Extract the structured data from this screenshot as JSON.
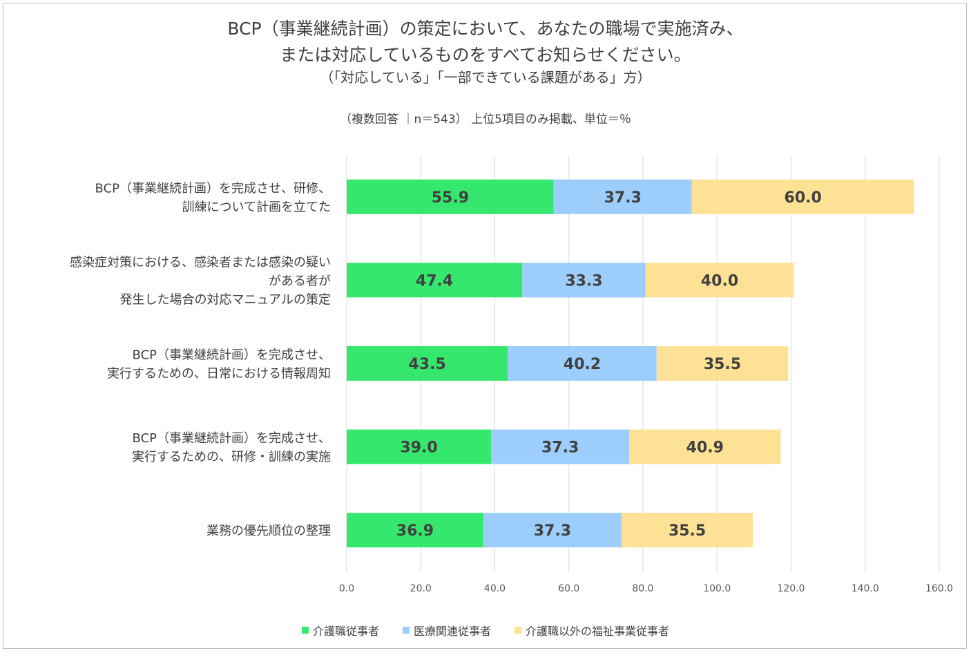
{
  "colors": {
    "s0": "#35e86d",
    "s1": "#9ccdfb",
    "s2": "#fde194",
    "grid": "#d9d9d9"
  },
  "chart_data": {
    "type": "bar",
    "orientation": "horizontal",
    "stacked": true,
    "title_lines": [
      "BCP（事業継続計画）の策定において、あなたの職場で実施済み、",
      "または対応しているものをすべてお知らせください。",
      "（「対応している」「一部できている課題がある」方）"
    ],
    "subtitle": "（複数回答 ｜n＝543） 上位5項目のみ掲載、単位＝％",
    "categories": [
      [
        "BCP（事業継続計画）を完成させ、研修、",
        "訓練について計画を立てた"
      ],
      [
        "感染症対策における、感染者または感染の疑い",
        "がある者が",
        "発生した場合の対応マニュアルの策定"
      ],
      [
        "BCP（事業継続計画）を完成させ、",
        "実行するための、日常における情報周知"
      ],
      [
        "BCP（事業継続計画）を完成させ、",
        "実行するための、研修・訓練の実施"
      ],
      [
        "業務の優先順位の整理"
      ]
    ],
    "series": [
      {
        "name": "介護職従事者",
        "values": [
          55.9,
          47.4,
          43.5,
          39.0,
          36.9
        ]
      },
      {
        "name": "医療関連従事者",
        "values": [
          37.3,
          33.3,
          40.2,
          37.3,
          37.3
        ]
      },
      {
        "name": "介護職以外の福祉事業従事者",
        "values": [
          60.0,
          40.0,
          35.5,
          40.9,
          35.5
        ]
      }
    ],
    "xlim": [
      0,
      160
    ],
    "xticks": [
      0,
      20,
      40,
      60,
      80,
      100,
      120,
      140,
      160
    ],
    "xtick_labels": [
      "0.0",
      "20.0",
      "40.0",
      "60.0",
      "80.0",
      "100.0",
      "120.0",
      "140.0",
      "160.0"
    ],
    "grid": true,
    "legend_position": "bottom"
  }
}
